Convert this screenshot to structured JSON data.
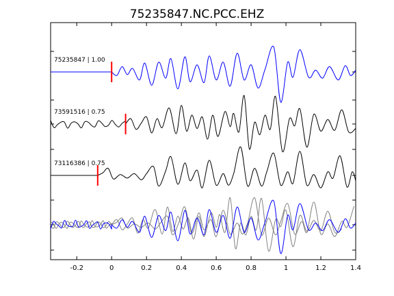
{
  "chart_data": {
    "type": "line",
    "title": "75235847.NC.PCC.EHZ",
    "xlabel": "",
    "ylabel": "",
    "xlim": [
      -0.35,
      1.4
    ],
    "xticks": [
      -0.2,
      0,
      0.2,
      0.4,
      0.6,
      0.8,
      1,
      1.2,
      1.4
    ],
    "xtick_labels": [
      "-0.2",
      "0",
      "0.2",
      "0.4",
      "0.6",
      "0.8",
      "1",
      "1.2",
      "1.4"
    ],
    "grid": false,
    "colors": {
      "reference": "#0000ff",
      "neighbor": "#000000",
      "overlay": "#808080",
      "pick": "#ff0000"
    },
    "series": [
      {
        "name": "75235847 | 1.00",
        "color": "#0000ff",
        "pick_time": 0.0,
        "pre_event": "flat",
        "samples": [
          [
            0.0,
            0
          ],
          [
            0.03,
            -0.2
          ],
          [
            0.06,
            0.3
          ],
          [
            0.09,
            -0.15
          ],
          [
            0.12,
            0.2
          ],
          [
            0.16,
            -0.45
          ],
          [
            0.19,
            0.5
          ],
          [
            0.23,
            -0.75
          ],
          [
            0.27,
            0.55
          ],
          [
            0.31,
            -0.35
          ],
          [
            0.34,
            0.75
          ],
          [
            0.38,
            -0.95
          ],
          [
            0.42,
            0.85
          ],
          [
            0.45,
            -0.55
          ],
          [
            0.49,
            0.4
          ],
          [
            0.53,
            -0.6
          ],
          [
            0.56,
            0.9
          ],
          [
            0.6,
            -0.45
          ],
          [
            0.64,
            0.55
          ],
          [
            0.68,
            -0.8
          ],
          [
            0.72,
            1.05
          ],
          [
            0.76,
            -0.45
          ],
          [
            0.8,
            0.4
          ],
          [
            0.84,
            -0.9
          ],
          [
            0.88,
            0.15
          ],
          [
            0.93,
            1.4
          ],
          [
            0.97,
            -1.7
          ],
          [
            1.01,
            0.55
          ],
          [
            1.04,
            -0.3
          ],
          [
            1.08,
            1.25
          ],
          [
            1.13,
            -0.3
          ],
          [
            1.17,
            0.1
          ],
          [
            1.21,
            -0.35
          ],
          [
            1.25,
            0.3
          ],
          [
            1.3,
            -0.45
          ],
          [
            1.34,
            0.35
          ],
          [
            1.37,
            -0.2
          ],
          [
            1.4,
            0.1
          ]
        ]
      },
      {
        "name": "73591516 | 0.75",
        "color": "#000000",
        "pick_time": 0.08,
        "pre_event": "noisy",
        "samples": [
          [
            0.08,
            0
          ],
          [
            0.11,
            0.3
          ],
          [
            0.14,
            -0.3
          ],
          [
            0.17,
            0.05
          ],
          [
            0.2,
            0.4
          ],
          [
            0.23,
            -0.5
          ],
          [
            0.26,
            0.3
          ],
          [
            0.29,
            -0.2
          ],
          [
            0.33,
            0.9
          ],
          [
            0.37,
            -0.55
          ],
          [
            0.4,
            1.05
          ],
          [
            0.43,
            -0.4
          ],
          [
            0.46,
            0.5
          ],
          [
            0.49,
            -0.25
          ],
          [
            0.52,
            0.4
          ],
          [
            0.55,
            -0.85
          ],
          [
            0.58,
            0.5
          ],
          [
            0.61,
            -0.7
          ],
          [
            0.65,
            0.7
          ],
          [
            0.68,
            -0.15
          ],
          [
            0.7,
            0.6
          ],
          [
            0.73,
            -0.45
          ],
          [
            0.76,
            1.6
          ],
          [
            0.79,
            -1.4
          ],
          [
            0.82,
            0.1
          ],
          [
            0.85,
            -0.6
          ],
          [
            0.88,
            0.5
          ],
          [
            0.91,
            -0.3
          ],
          [
            0.94,
            1.55
          ],
          [
            0.98,
            -1.55
          ],
          [
            1.02,
            0.3
          ],
          [
            1.05,
            -0.1
          ],
          [
            1.08,
            0.85
          ],
          [
            1.12,
            -1.3
          ],
          [
            1.16,
            0.55
          ],
          [
            1.2,
            -0.4
          ],
          [
            1.24,
            0.25
          ],
          [
            1.28,
            -0.35
          ],
          [
            1.32,
            0.8
          ],
          [
            1.36,
            -0.45
          ],
          [
            1.4,
            -0.25
          ]
        ]
      },
      {
        "name": "73116386 | 0.75",
        "color": "#000000",
        "pick_time": -0.08,
        "pre_event": "flat",
        "samples": [
          [
            -0.08,
            0
          ],
          [
            -0.05,
            0.15
          ],
          [
            -0.02,
            0.4
          ],
          [
            0.01,
            -0.2
          ],
          [
            0.05,
            0.05
          ],
          [
            0.09,
            -0.15
          ],
          [
            0.13,
            0.1
          ],
          [
            0.17,
            -0.25
          ],
          [
            0.2,
            0.1
          ],
          [
            0.24,
            0.5
          ],
          [
            0.27,
            -0.6
          ],
          [
            0.31,
            0.25
          ],
          [
            0.34,
            1.05
          ],
          [
            0.38,
            -0.5
          ],
          [
            0.42,
            0.7
          ],
          [
            0.45,
            -0.3
          ],
          [
            0.49,
            0.3
          ],
          [
            0.52,
            -0.7
          ],
          [
            0.56,
            0.85
          ],
          [
            0.6,
            -0.55
          ],
          [
            0.64,
            0.1
          ],
          [
            0.67,
            -0.55
          ],
          [
            0.7,
            0.1
          ],
          [
            0.74,
            1.6
          ],
          [
            0.78,
            -0.6
          ],
          [
            0.82,
            0.4
          ],
          [
            0.86,
            -0.6
          ],
          [
            0.89,
            0.2
          ],
          [
            0.93,
            1.25
          ],
          [
            0.97,
            -0.55
          ],
          [
            1.01,
            0.2
          ],
          [
            1.04,
            -0.45
          ],
          [
            1.08,
            1.35
          ],
          [
            1.12,
            -0.55
          ],
          [
            1.16,
            0.05
          ],
          [
            1.2,
            -0.7
          ],
          [
            1.24,
            0.2
          ],
          [
            1.27,
            -0.15
          ],
          [
            1.31,
            1.1
          ],
          [
            1.35,
            -0.65
          ],
          [
            1.38,
            0.2
          ],
          [
            1.4,
            -0.3
          ]
        ]
      }
    ]
  }
}
